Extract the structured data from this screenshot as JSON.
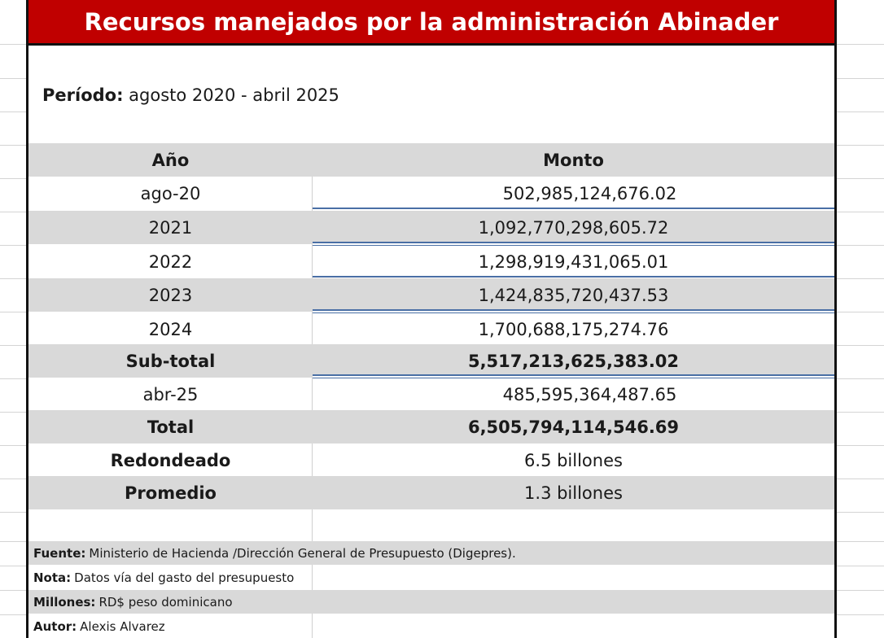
{
  "title": "Recursos manejados por la administración Abinader",
  "period": {
    "label": "Período:",
    "value": "agosto 2020 - abril 2025"
  },
  "table": {
    "headers": {
      "year": "Año",
      "amount": "Monto"
    },
    "rows": [
      {
        "year": "ago-20",
        "amount": "502,985,124,676.02"
      },
      {
        "year": "2021",
        "amount": "1,092,770,298,605.72"
      },
      {
        "year": "2022",
        "amount": "1,298,919,431,065.01"
      },
      {
        "year": "2023",
        "amount": "1,424,835,720,437.53"
      },
      {
        "year": "2024",
        "amount": "1,700,688,175,274.76"
      },
      {
        "year": "Sub-total",
        "amount": "5,517,213,625,383.02"
      },
      {
        "year": "abr-25",
        "amount": "485,595,364,487.65"
      },
      {
        "year": "Total",
        "amount": "6,505,794,114,546.69"
      },
      {
        "year": "Redondeado",
        "amount": "6.5 billones"
      },
      {
        "year": "Promedio",
        "amount": "1.3 billones"
      }
    ]
  },
  "footer": {
    "source_label": "Fuente:",
    "source": "Ministerio de Hacienda /Dirección General de Presupuesto (Digepres).",
    "note_label": "Nota:",
    "note": "Datos vía del gasto del presupuesto",
    "units_label": "Millones:",
    "units": "RD$ peso dominicano",
    "author_label": "Autor:",
    "author": "Alexis Alvarez"
  }
}
